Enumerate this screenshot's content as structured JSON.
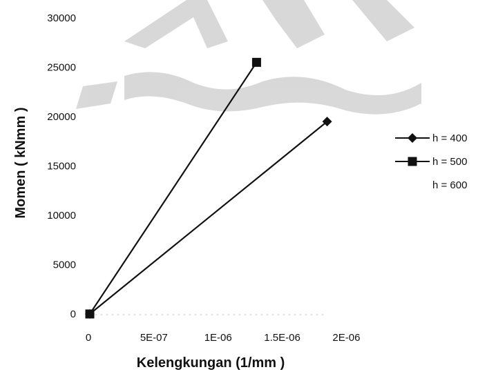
{
  "chart_data": {
    "type": "line",
    "title": "",
    "xlabel": "Kelengkungan (1/mm )",
    "ylabel": "Momen ( kNmm )",
    "xlim": [
      0,
      2.1e-06
    ],
    "ylim": [
      0,
      30000
    ],
    "x_ticks": [
      {
        "value": 0,
        "label": "0"
      },
      {
        "value": 5e-07,
        "label": "5E-07"
      },
      {
        "value": 1e-06,
        "label": "1E-06"
      },
      {
        "value": 1.5e-06,
        "label": "1.5E-06"
      },
      {
        "value": 2e-06,
        "label": "2E-06"
      }
    ],
    "y_ticks": [
      {
        "value": 0,
        "label": "0"
      },
      {
        "value": 5000,
        "label": "5000"
      },
      {
        "value": 10000,
        "label": "10000"
      },
      {
        "value": 15000,
        "label": "15000"
      },
      {
        "value": 20000,
        "label": "20000"
      },
      {
        "value": 25000,
        "label": "25000"
      },
      {
        "value": 30000,
        "label": "30000"
      }
    ],
    "grid": false,
    "legend_position": "right",
    "series": [
      {
        "name": "h = 400",
        "marker": "diamond",
        "color": "#111111",
        "x": [
          0,
          1.85e-06
        ],
        "y": [
          0,
          19500
        ]
      },
      {
        "name": "h = 500",
        "marker": "square",
        "color": "#111111",
        "x": [
          0,
          1.3e-06
        ],
        "y": [
          0,
          25500
        ]
      },
      {
        "name": "h = 600",
        "marker": "none",
        "color": "#111111",
        "x": [],
        "y": []
      }
    ]
  }
}
